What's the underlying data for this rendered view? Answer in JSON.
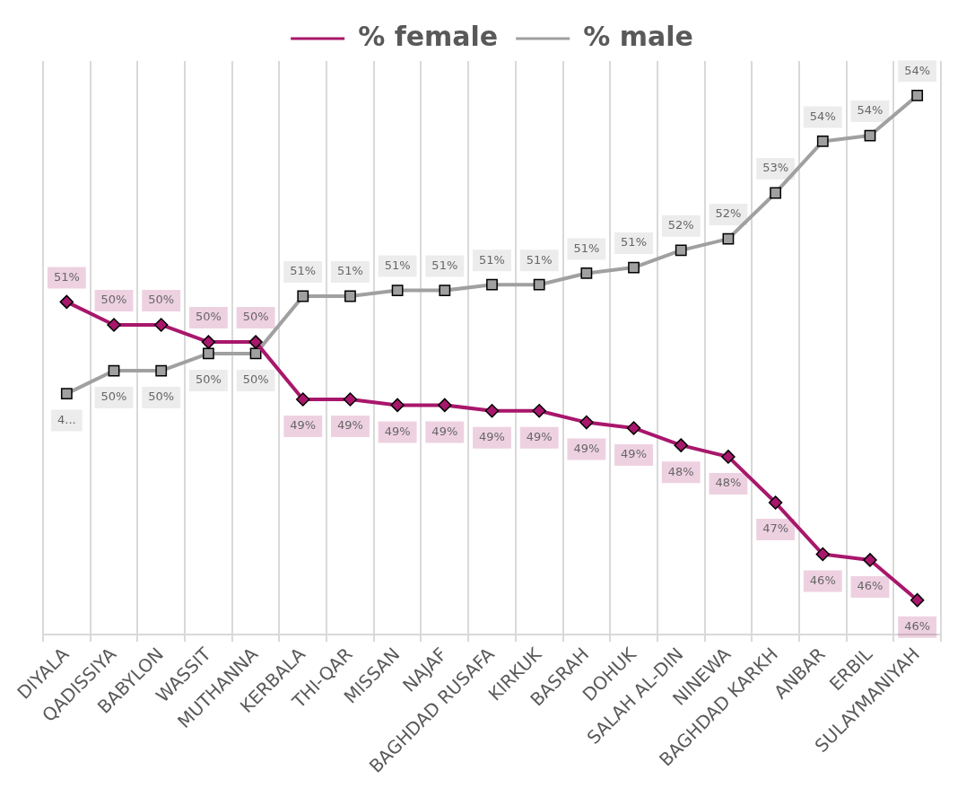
{
  "chart_data": {
    "type": "line",
    "categories": [
      "DIYALA",
      "QADISSIYA",
      "BABYLON",
      "WASSIT",
      "MUTHANNA",
      "KERBALA",
      "THI-QAR",
      "MISSAN",
      "NAJAF",
      "BAGHDAD RUSAFA",
      "KIRKUK",
      "BASRAH",
      "DOHUK",
      "SALAH AL-DIN",
      "NINEWA",
      "BAGHDAD KARKH",
      "ANBAR",
      "ERBIL",
      "SULAYMANIYAH"
    ],
    "series": [
      {
        "name": "% female",
        "color": "#a8176b",
        "marker": "diamond",
        "values": [
          50.8,
          50.4,
          50.4,
          50.1,
          50.1,
          49.1,
          49.1,
          49.0,
          49.0,
          48.9,
          48.9,
          48.7,
          48.6,
          48.3,
          48.1,
          47.3,
          46.4,
          46.3,
          45.6
        ],
        "value_labels": [
          "51%",
          "50%",
          "50%",
          "50%",
          "50%",
          "49%",
          "49%",
          "49%",
          "49%",
          "49%",
          "49%",
          "49%",
          "49%",
          "48%",
          "48%",
          "47%",
          "46%",
          "46%",
          "46%"
        ]
      },
      {
        "name": "% male",
        "color": "#a0a0a0",
        "marker": "square",
        "values": [
          49.2,
          49.6,
          49.6,
          49.9,
          49.9,
          50.9,
          50.9,
          51.0,
          51.0,
          51.1,
          51.1,
          51.3,
          51.4,
          51.7,
          51.9,
          52.7,
          53.6,
          53.7,
          54.4
        ],
        "value_labels": [
          "4...",
          "50%",
          "50%",
          "50%",
          "50%",
          "51%",
          "51%",
          "51%",
          "51%",
          "51%",
          "51%",
          "51%",
          "51%",
          "52%",
          "52%",
          "53%",
          "54%",
          "54%",
          "54%"
        ]
      }
    ],
    "grid": "x",
    "legend": "top",
    "line_style": "solid"
  }
}
